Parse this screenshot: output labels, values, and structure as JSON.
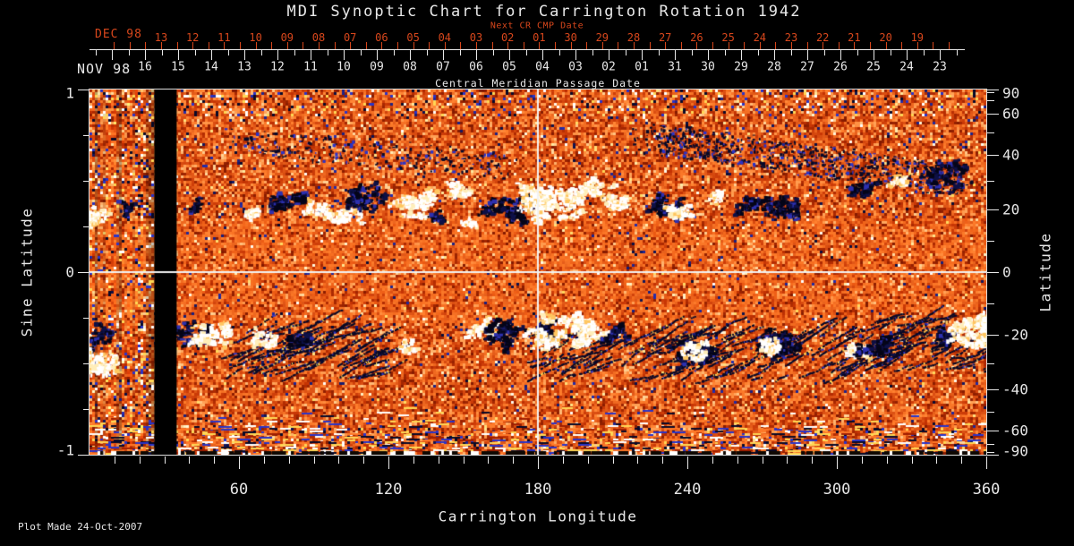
{
  "title": "MDI Synoptic Chart for Carrington Rotation 1942",
  "top_axes": {
    "next_cr_title": "Next CR CMP Date",
    "next_cr_month": "DEC 98",
    "next_cr_days": [
      "13",
      "12",
      "11",
      "10",
      "09",
      "08",
      "07",
      "06",
      "05",
      "04",
      "03",
      "02",
      "01",
      "30",
      "29",
      "28",
      "27",
      "26",
      "25",
      "24",
      "23",
      "22",
      "21",
      "20",
      "19"
    ],
    "cmp_month": "NOV 98",
    "cmp_days": [
      "16",
      "15",
      "14",
      "13",
      "12",
      "11",
      "10",
      "09",
      "08",
      "07",
      "06",
      "05",
      "04",
      "03",
      "02",
      "01",
      "31",
      "30",
      "29",
      "28",
      "27",
      "26",
      "25",
      "24",
      "23"
    ],
    "cmp_title": "Central Meridian Passage Date"
  },
  "left_axis": {
    "title": "Sine Latitude",
    "tick_labels": [
      "1",
      "0",
      "-1"
    ],
    "tick_values": [
      1,
      0,
      -1
    ],
    "minor_tick_step": 0.25,
    "range": [
      -1,
      1
    ]
  },
  "right_axis": {
    "title": "Latitude",
    "tick_labels": [
      "90",
      "60",
      "40",
      "20",
      "0",
      "-20",
      "-40",
      "-60",
      "-90"
    ],
    "tick_values": [
      90,
      60,
      40,
      20,
      0,
      -20,
      -40,
      -60,
      -90
    ],
    "minor_tick_step_deg": 10
  },
  "bottom_axis": {
    "title": "Carrington Longitude",
    "tick_labels": [
      "60",
      "120",
      "180",
      "240",
      "300",
      "360"
    ],
    "tick_values": [
      60,
      120,
      180,
      240,
      300,
      360
    ],
    "minor_tick_step_deg": 10,
    "range": [
      0,
      360
    ]
  },
  "footer": "Plot Made 24-Oct-2007",
  "colors": {
    "background": "#000000",
    "axis_text": "#e8e8e8",
    "next_cr_red": "#d8471c",
    "frame": "#dcdcdc",
    "grid_cross": "#f2f2f2"
  },
  "chart_data": {
    "type": "heatmap",
    "title": "MDI Synoptic Chart for Carrington Rotation 1942",
    "xlabel": "Carrington Longitude",
    "ylabel_left": "Sine Latitude",
    "ylabel_right": "Latitude",
    "x_range_deg": [
      0,
      360
    ],
    "y_range_sine_latitude": [
      -1,
      1
    ],
    "gridlines": {
      "longitude_deg": 180,
      "sine_latitude": 0
    },
    "data_gap_longitude_deg": [
      26,
      35
    ],
    "noisy_left_edge_longitude_deg": [
      0,
      26
    ],
    "active_region_belts_latitude_deg": [
      20,
      -20
    ],
    "palette": [
      "#7a1a00",
      "#c63404",
      "#eb5812",
      "#ff7e2c",
      "#ffa85e",
      "#ffdaa0",
      "#ffffff",
      "#080928",
      "#2a34c8",
      "#ffd755"
    ],
    "active_regions": [
      {
        "lon": 1,
        "lat": 18,
        "pol": "p",
        "size": "m"
      },
      {
        "lon": 15,
        "lat": 20,
        "pol": "n",
        "size": "s"
      },
      {
        "lon": 43,
        "lat": 21,
        "pol": "n",
        "size": "s"
      },
      {
        "lon": 66,
        "lat": 19,
        "pol": "p",
        "size": "s"
      },
      {
        "lon": 79,
        "lat": 22,
        "pol": "n",
        "size": "l"
      },
      {
        "lon": 92,
        "lat": 20,
        "pol": "p",
        "size": "m"
      },
      {
        "lon": 105,
        "lat": 18,
        "pol": "p",
        "size": "m"
      },
      {
        "lon": 111,
        "lat": 24,
        "pol": "n",
        "size": "l"
      },
      {
        "lon": 129,
        "lat": 21,
        "pol": "p",
        "size": "l"
      },
      {
        "lon": 140,
        "lat": 17,
        "pol": "n",
        "size": "s"
      },
      {
        "lon": 147,
        "lat": 25,
        "pol": "p",
        "size": "m"
      },
      {
        "lon": 154,
        "lat": 15,
        "pol": "p",
        "size": "s"
      },
      {
        "lon": 161,
        "lat": 21,
        "pol": "n",
        "size": "m"
      },
      {
        "lon": 172,
        "lat": 18,
        "pol": "n",
        "size": "m"
      },
      {
        "lon": 178,
        "lat": 23,
        "pol": "n",
        "size": "m"
      },
      {
        "lon": 180,
        "lat": 24,
        "pol": "p",
        "size": "l"
      },
      {
        "lon": 187,
        "lat": 22,
        "pol": "p",
        "size": "xl"
      },
      {
        "lon": 197,
        "lat": 26,
        "pol": "p",
        "size": "m"
      },
      {
        "lon": 205,
        "lat": 25,
        "pol": "p",
        "size": "m"
      },
      {
        "lon": 212,
        "lat": 22,
        "pol": "p",
        "size": "m"
      },
      {
        "lon": 232,
        "lat": 21,
        "pol": "n",
        "size": "l"
      },
      {
        "lon": 236,
        "lat": 19,
        "pol": "p",
        "size": "m"
      },
      {
        "lon": 251,
        "lat": 24,
        "pol": "p",
        "size": "s"
      },
      {
        "lon": 265,
        "lat": 22,
        "pol": "n",
        "size": "m"
      },
      {
        "lon": 278,
        "lat": 21,
        "pol": "n",
        "size": "l"
      },
      {
        "lon": 310,
        "lat": 26,
        "pol": "n",
        "size": "m"
      },
      {
        "lon": 326,
        "lat": 30,
        "pol": "p",
        "size": "s"
      },
      {
        "lon": 344,
        "lat": 32,
        "pol": "n",
        "size": "l"
      },
      {
        "lon": 4,
        "lat": -21,
        "pol": "n",
        "size": "m"
      },
      {
        "lon": 4,
        "lat": -30,
        "pol": "p",
        "size": "l"
      },
      {
        "lon": 42,
        "lat": -20,
        "pol": "n",
        "size": "l"
      },
      {
        "lon": 50,
        "lat": -20,
        "pol": "p",
        "size": "l"
      },
      {
        "lon": 71,
        "lat": -22,
        "pol": "p",
        "size": "m"
      },
      {
        "lon": 84,
        "lat": -22,
        "pol": "n",
        "size": "m"
      },
      {
        "lon": 128,
        "lat": -24,
        "pol": "p",
        "size": "s"
      },
      {
        "lon": 157,
        "lat": -18,
        "pol": "p",
        "size": "m"
      },
      {
        "lon": 166,
        "lat": -19,
        "pol": "n",
        "size": "l"
      },
      {
        "lon": 183,
        "lat": -19,
        "pol": "n",
        "size": "m"
      },
      {
        "lon": 190,
        "lat": -19,
        "pol": "p",
        "size": "xl"
      },
      {
        "lon": 202,
        "lat": -19,
        "pol": "p",
        "size": "m"
      },
      {
        "lon": 211,
        "lat": -20,
        "pol": "n",
        "size": "m"
      },
      {
        "lon": 244,
        "lat": -27,
        "pol": "n",
        "size": "l"
      },
      {
        "lon": 242,
        "lat": -26,
        "pol": "p",
        "size": "m"
      },
      {
        "lon": 277,
        "lat": -23,
        "pol": "n",
        "size": "l"
      },
      {
        "lon": 273,
        "lat": -24,
        "pol": "p",
        "size": "m"
      },
      {
        "lon": 308,
        "lat": -25,
        "pol": "p",
        "size": "m"
      },
      {
        "lon": 316,
        "lat": -24,
        "pol": "n",
        "size": "l"
      },
      {
        "lon": 345,
        "lat": -20,
        "pol": "n",
        "size": "m"
      },
      {
        "lon": 354,
        "lat": -19,
        "pol": "p",
        "size": "xl"
      }
    ],
    "diffuse_dark_bands": [
      {
        "lon_start": 223,
        "lat_start": 48,
        "lon_end": 350,
        "lat_end": 30,
        "density": 2.2,
        "spread": 34
      },
      {
        "lon_start": 58,
        "lat_start": 46,
        "lon_end": 170,
        "lat_end": 36,
        "density": 0.8,
        "spread": 30
      }
    ],
    "streak_zones": [
      {
        "lon": [
          50,
          119
        ],
        "lat": -27,
        "count": 70
      },
      {
        "lon": [
          170,
          200
        ],
        "lat": -28,
        "count": 25
      },
      {
        "lon": [
          212,
          305
        ],
        "lat": -28,
        "count": 85
      },
      {
        "lon": [
          309,
          359
        ],
        "lat": -24,
        "count": 60
      }
    ]
  }
}
